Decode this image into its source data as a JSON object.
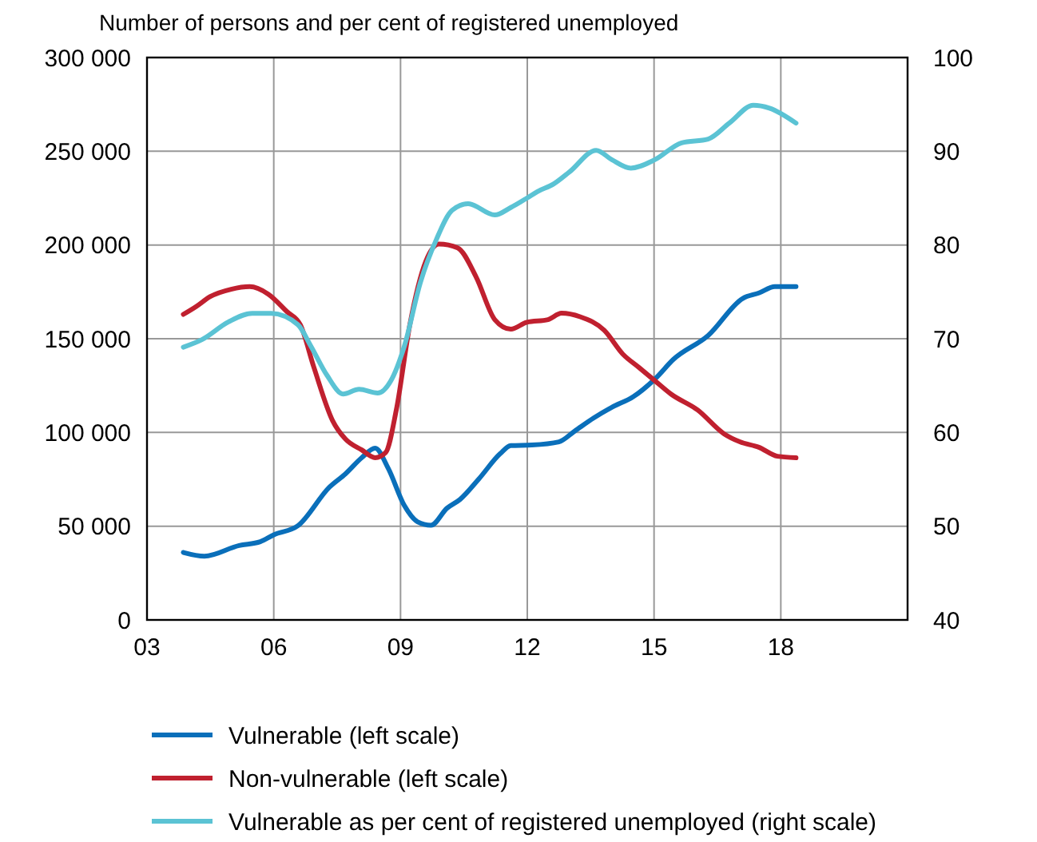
{
  "chart_data": {
    "type": "line",
    "title": "Number of persons and per cent of registered unemployed",
    "xlim": [
      2003,
      2021
    ],
    "xticks": [
      {
        "value": 2003,
        "label": "03"
      },
      {
        "value": 2006,
        "label": "06"
      },
      {
        "value": 2009,
        "label": "09"
      },
      {
        "value": 2012,
        "label": "12"
      },
      {
        "value": 2015,
        "label": "15"
      },
      {
        "value": 2018,
        "label": "18"
      }
    ],
    "ylim": [
      0,
      300000
    ],
    "yticks": [
      0,
      {
        "value": 50000,
        "label": "50 000"
      },
      {
        "value": 100000,
        "label": "100 000"
      },
      {
        "value": 150000,
        "label": "150 000"
      },
      {
        "value": 200000,
        "label": "200 000"
      },
      {
        "value": 250000,
        "label": "250 000"
      },
      {
        "value": 300000,
        "label": "300 000"
      }
    ],
    "y2lim": [
      40,
      100
    ],
    "y2ticks": [
      40,
      50,
      60,
      70,
      80,
      90,
      100
    ],
    "grid": true,
    "legend": "bottom",
    "marker": "none",
    "line_style": "solid",
    "series": [
      {
        "name": "Vulnerable (left scale)",
        "color": "#0a6fba",
        "x": [
          2003.86,
          2004.36,
          2005.18,
          2005.68,
          2006.0,
          2006.57,
          2007.32,
          2007.7,
          2008.08,
          2008.4,
          2008.71,
          2009.09,
          2009.4,
          2009.72,
          2010.1,
          2010.41,
          2010.85,
          2011.36,
          2011.61,
          2012.11,
          2012.75,
          2013.12,
          2013.57,
          2014.0,
          2014.51,
          2015.02,
          2015.46,
          2016.28,
          2017.1,
          2017.48,
          2017.86,
          2018.36
        ],
        "values": [
          36000,
          34000,
          39700,
          41700,
          45400,
          50200,
          70900,
          78000,
          86500,
          91600,
          80800,
          61000,
          52400,
          50500,
          59600,
          64300,
          75100,
          88700,
          93000,
          93300,
          95000,
          100700,
          107700,
          113400,
          119100,
          128500,
          139000,
          151700,
          171500,
          174400,
          177800,
          177800
        ]
      },
      {
        "name": "Non-vulnerable (left scale)",
        "color": "#c0202f",
        "x": [
          2003.86,
          2004.17,
          2004.49,
          2004.99,
          2005.43,
          2005.87,
          2006.31,
          2006.63,
          2006.95,
          2007.39,
          2007.7,
          2008.08,
          2008.4,
          2008.65,
          2008.9,
          2009.22,
          2009.6,
          2009.91,
          2010.35,
          2010.79,
          2011.23,
          2011.61,
          2011.99,
          2012.49,
          2012.81,
          2013.25,
          2013.82,
          2014.26,
          2014.64,
          2015.02,
          2015.4,
          2016.03,
          2016.66,
          2017.03,
          2017.48,
          2017.92,
          2018.36
        ],
        "values": [
          163000,
          167300,
          172400,
          176400,
          177800,
          173800,
          164500,
          157400,
          134700,
          106400,
          96400,
          90700,
          86500,
          89300,
          112000,
          157400,
          191400,
          200500,
          198500,
          182900,
          160200,
          155100,
          158800,
          160200,
          163600,
          161700,
          154500,
          141800,
          134700,
          127600,
          120500,
          112000,
          99200,
          95000,
          92100,
          87300,
          86500
        ]
      },
      {
        "name": "Vulnerable as per cent of registered unemployed (right scale)",
        "color": "#5bc3d4",
        "axis": "y2",
        "x": [
          2003.86,
          2004.3,
          2004.93,
          2005.49,
          2005.94,
          2006.57,
          2006.88,
          2007.26,
          2007.64,
          2008.02,
          2008.46,
          2008.77,
          2009.09,
          2009.47,
          2009.85,
          2010.22,
          2010.6,
          2011.23,
          2011.61,
          2011.99,
          2012.24,
          2012.62,
          2013.0,
          2013.63,
          2014.0,
          2014.45,
          2015.02,
          2015.65,
          2016.28,
          2016.78,
          2017.35,
          2017.73,
          2018.36
        ],
        "values": [
          69.1,
          69.9,
          71.8,
          72.7,
          72.7,
          71.5,
          69.2,
          66.1,
          64.1,
          64.6,
          64.2,
          65.5,
          69.2,
          76.0,
          80.6,
          83.7,
          84.4,
          83.2,
          84.0,
          85.0,
          85.7,
          86.5,
          87.8,
          90.1,
          89.1,
          88.2,
          89.1,
          90.9,
          91.3,
          93.0,
          94.9,
          94.6,
          93.0
        ]
      }
    ]
  }
}
